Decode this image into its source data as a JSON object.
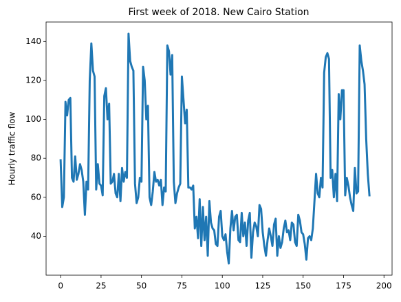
{
  "chart_data": {
    "type": "line",
    "title": "First week of 2018. New Cairo Station",
    "ylabel": "Hourly traffic flow",
    "x": [
      0,
      1,
      2,
      3,
      4,
      5,
      6,
      7,
      8,
      9,
      10,
      11,
      12,
      13,
      14,
      15,
      16,
      17,
      18,
      19,
      20,
      21,
      22,
      23,
      24,
      25,
      26,
      27,
      28,
      29,
      30,
      31,
      32,
      33,
      34,
      35,
      36,
      37,
      38,
      39,
      40,
      41,
      42,
      43,
      44,
      45,
      46,
      47,
      48,
      49,
      50,
      51,
      52,
      53,
      54,
      55,
      56,
      57,
      58,
      59,
      60,
      61,
      62,
      63,
      64,
      65,
      66,
      67,
      68,
      69,
      70,
      71,
      72,
      73,
      74,
      75,
      76,
      77,
      78,
      79,
      80,
      81,
      82,
      83,
      84,
      85,
      86,
      87,
      88,
      89,
      90,
      91,
      92,
      93,
      94,
      95,
      96,
      97,
      98,
      99,
      100,
      101,
      102,
      103,
      104,
      105,
      106,
      107,
      108,
      109,
      110,
      111,
      112,
      113,
      114,
      115,
      116,
      117,
      118,
      119,
      120,
      121,
      122,
      123,
      124,
      125,
      126,
      127,
      128,
      129,
      130,
      131,
      132,
      133,
      134,
      135,
      136,
      137,
      138,
      139,
      140,
      141,
      142,
      143,
      144,
      145,
      146,
      147,
      148,
      149,
      150,
      151,
      152,
      153,
      154,
      155,
      156,
      157,
      158,
      159,
      160,
      161,
      162,
      163,
      164,
      165,
      166,
      167,
      168,
      169,
      170,
      171,
      172,
      173,
      174,
      175,
      176,
      177,
      178,
      179,
      180,
      181,
      182,
      183,
      184,
      185,
      186,
      187,
      188,
      189,
      190,
      191
    ],
    "values": [
      79,
      55,
      60,
      109,
      102,
      110,
      111,
      70,
      68,
      81,
      69,
      72,
      77,
      74,
      68,
      51,
      68,
      64,
      120,
      139,
      125,
      122,
      64,
      77,
      67,
      66,
      61,
      112,
      116,
      100,
      108,
      67,
      68,
      72,
      62,
      60,
      72,
      58,
      75,
      68,
      73,
      70,
      144,
      130,
      127,
      125,
      67,
      57,
      60,
      70,
      68,
      127,
      120,
      100,
      107,
      60,
      56,
      63,
      73,
      68,
      69,
      66,
      69,
      56,
      65,
      63,
      138,
      135,
      123,
      133,
      68,
      57,
      62,
      65,
      67,
      122,
      110,
      98,
      105,
      65,
      65,
      64,
      66,
      44,
      50,
      39,
      59,
      35,
      55,
      38,
      50,
      30,
      58,
      47,
      44,
      43,
      36,
      35,
      50,
      53,
      40,
      38,
      41,
      32,
      26,
      44,
      53,
      43,
      50,
      51,
      38,
      37,
      52,
      40,
      47,
      35,
      48,
      52,
      29,
      42,
      47,
      45,
      40,
      56,
      54,
      42,
      35,
      30,
      38,
      44,
      40,
      35,
      46,
      49,
      30,
      40,
      34,
      37,
      44,
      48,
      42,
      43,
      38,
      47,
      46,
      37,
      35,
      51,
      48,
      42,
      41,
      36,
      28,
      39,
      40,
      38,
      44,
      58,
      72,
      62,
      60,
      70,
      65,
      124,
      132,
      134,
      131,
      70,
      74,
      60,
      72,
      58,
      113,
      100,
      115,
      115,
      61,
      70,
      66,
      60,
      56,
      53,
      75,
      62,
      63,
      138,
      130,
      125,
      118,
      90,
      72,
      61
    ],
    "color": "#1f77b4",
    "xlim": [
      -9,
      205
    ],
    "ylim": [
      20,
      150
    ],
    "xticks": [
      0,
      25,
      50,
      75,
      100,
      125,
      150,
      175,
      200
    ],
    "yticks": [
      40,
      60,
      80,
      100,
      120,
      140
    ]
  }
}
